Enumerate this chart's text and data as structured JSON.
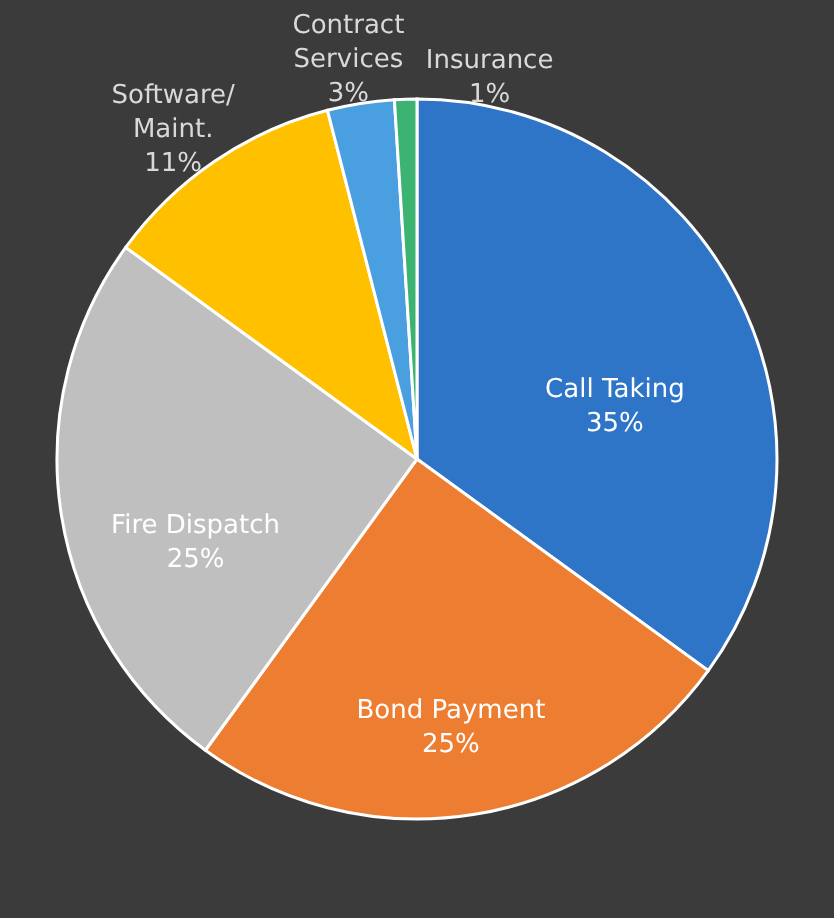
{
  "chart_data": {
    "type": "pie",
    "categories": [
      "Call Taking",
      "Bond Payment",
      "Fire Dispatch",
      "Software/ Maint.",
      "Contract Services",
      "Insurance"
    ],
    "values": [
      35,
      25,
      25,
      11,
      3,
      1
    ],
    "value_labels": [
      "35%",
      "25%",
      "25%",
      "11%",
      "3%",
      "1%"
    ],
    "colors": [
      "#2e75c8",
      "#ed7d31",
      "#bfbfbf",
      "#ffc000",
      "#4a9fe0",
      "#3cb371"
    ],
    "legend": false
  }
}
